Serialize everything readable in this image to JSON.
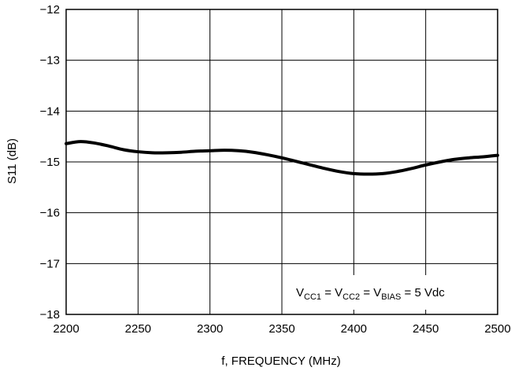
{
  "chart_data": {
    "type": "line",
    "title": "",
    "xlabel": "f, FREQUENCY (MHz)",
    "ylabel": "S11 (dB)",
    "xlim": [
      2200,
      2500
    ],
    "ylim": [
      -18,
      -12
    ],
    "xticks": [
      2200,
      2250,
      2300,
      2350,
      2400,
      2450,
      2500
    ],
    "yticks": [
      -12,
      -13,
      -14,
      -15,
      -16,
      -17,
      -18
    ],
    "xtick_labels": [
      "2200",
      "2250",
      "2300",
      "2350",
      "2400",
      "2450",
      "2500"
    ],
    "ytick_labels": [
      "−12",
      "−13",
      "−14",
      "−15",
      "−16",
      "−17",
      "−18"
    ],
    "grid": true,
    "annotation": {
      "v1": "V",
      "s1": "CC1",
      "eq1": " = V",
      "s2": "CC2",
      "eq2": " = V",
      "s3": "BIAS",
      "tail": " = 5 Vdc"
    },
    "series": [
      {
        "x": [
          2200,
          2210,
          2220,
          2230,
          2240,
          2250,
          2260,
          2270,
          2280,
          2290,
          2300,
          2310,
          2320,
          2330,
          2340,
          2350,
          2360,
          2370,
          2380,
          2390,
          2400,
          2410,
          2420,
          2430,
          2440,
          2450,
          2460,
          2470,
          2480,
          2490,
          2500
        ],
        "y": [
          -14.64,
          -14.6,
          -14.63,
          -14.69,
          -14.76,
          -14.8,
          -14.82,
          -14.82,
          -14.81,
          -14.79,
          -14.78,
          -14.77,
          -14.78,
          -14.81,
          -14.86,
          -14.92,
          -14.99,
          -15.06,
          -15.13,
          -15.19,
          -15.23,
          -15.24,
          -15.23,
          -15.19,
          -15.13,
          -15.06,
          -15.0,
          -14.95,
          -14.92,
          -14.9,
          -14.87
        ],
        "color": "#000000"
      }
    ]
  }
}
